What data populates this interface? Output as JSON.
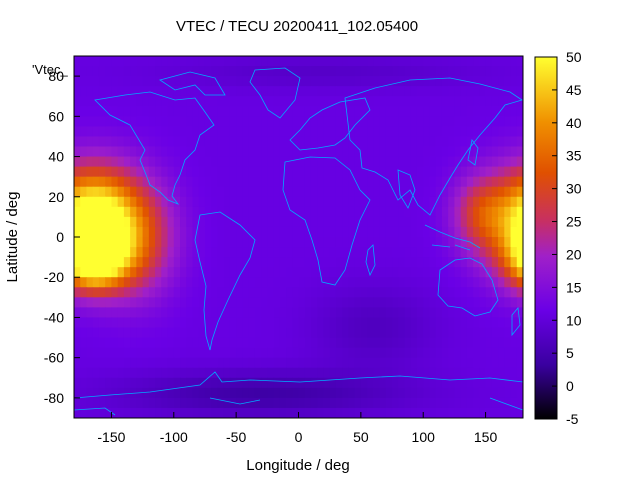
{
  "chart_data": {
    "type": "heatmap",
    "title": "VTEC / TECU 20200411_102.05400",
    "xlabel": "Longitude / deg",
    "ylabel": "Latitude / deg",
    "series_key": "'Vtec_",
    "xlim": [
      -180,
      180
    ],
    "ylim": [
      -90,
      90
    ],
    "xticks": [
      -150,
      -100,
      -50,
      0,
      50,
      100,
      150
    ],
    "yticks": [
      -80,
      -60,
      -40,
      -20,
      0,
      20,
      40,
      60,
      80
    ],
    "colorbar": {
      "range": [
        -5,
        50
      ],
      "ticks": [
        -5,
        0,
        5,
        10,
        15,
        20,
        25,
        30,
        35,
        40,
        45,
        50
      ],
      "palette": "black-blue-purple-red-orange-yellow"
    },
    "background_value": 11,
    "grid": false,
    "coastline_color": "#00aaff",
    "hotspots": [
      {
        "lon": -162,
        "lat": 8,
        "peak": 46,
        "sx": 22,
        "sy": 18
      },
      {
        "lon": -165,
        "lat": -12,
        "peak": 42,
        "sx": 18,
        "sy": 10
      },
      {
        "lon": -130,
        "lat": 0,
        "peak": 30,
        "sx": 22,
        "sy": 20
      },
      {
        "lon": 170,
        "lat": 8,
        "peak": 27,
        "sx": 25,
        "sy": 18
      },
      {
        "lon": 145,
        "lat": 12,
        "peak": 22,
        "sx": 15,
        "sy": 12
      }
    ],
    "lows": [
      {
        "lon": 60,
        "lat": -45,
        "depth": 4,
        "sx": 35,
        "sy": 15
      },
      {
        "lon": -30,
        "lat": -78,
        "depth": 7,
        "sx": 80,
        "sy": 8
      },
      {
        "lon": 20,
        "lat": 82,
        "depth": 3,
        "sx": 90,
        "sy": 6
      }
    ]
  }
}
